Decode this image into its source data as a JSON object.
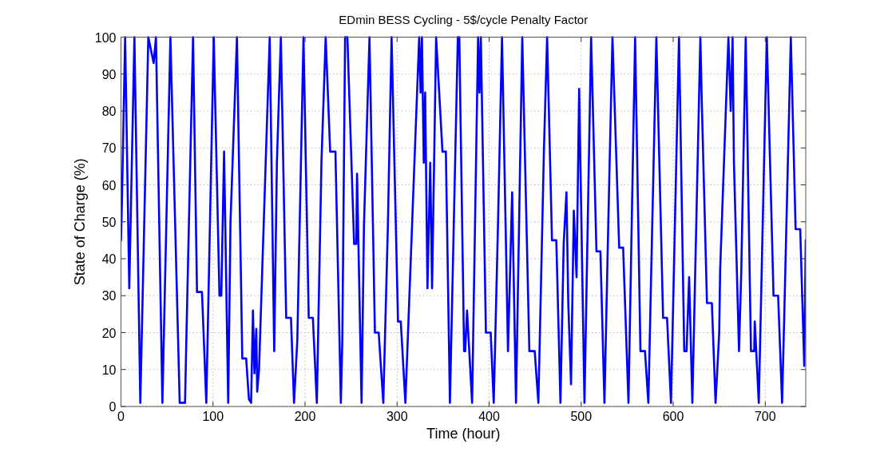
{
  "chart_data": {
    "type": "line",
    "title": "EDmin BESS Cycling - 5$/cycle Penalty Factor",
    "xlabel": "Time (hour)",
    "ylabel": "State of Charge (%)",
    "xlim": [
      0,
      744
    ],
    "ylim": [
      0,
      100
    ],
    "xticks": [
      0,
      100,
      200,
      300,
      400,
      500,
      600,
      700
    ],
    "yticks": [
      0,
      10,
      20,
      30,
      40,
      50,
      60,
      70,
      80,
      90,
      100
    ],
    "grid": true,
    "line_style": "solid",
    "marker": "none",
    "series": [
      {
        "color": "#0000ff",
        "x": [
          0,
          1,
          4.5,
          9,
          14.6,
          21,
          29.7,
          35.5,
          38,
          45,
          53.7,
          63.8,
          69.6,
          71,
          78.3,
          82.6,
          88,
          92.7,
          100.8,
          107,
          109,
          112,
          116.5,
          119,
          126,
          131.8,
          136,
          139,
          141.4,
          143.4,
          145,
          147,
          148,
          150,
          161.6,
          166.5,
          169.4,
          173.7,
          179.5,
          184.7,
          188,
          191.6,
          198.3,
          204,
          208.5,
          212.8,
          217.8,
          222.4,
          227.3,
          233,
          238.9,
          240.5,
          243.5,
          246,
          253.3,
          255.6,
          256.5,
          261.4,
          264,
          270,
          275.9,
          280,
          285,
          290,
          294,
          301,
          304,
          309,
          316.4,
          324,
          325.5,
          327,
          329,
          330.5,
          333,
          336,
          338,
          342.4,
          349.3,
          353,
          357.4,
          366,
          367.6,
          372.8,
          374,
          376,
          381.5,
          388,
          389.5,
          391,
          396.5,
          401.7,
          405,
          409.6,
          414,
          420.5,
          425,
          429.2,
          436,
          443.7,
          449.5,
          453.5,
          459.6,
          463,
          468.3,
          473,
          477.5,
          481,
          484,
          486,
          489,
          492,
          495,
          497.8,
          503.6,
          510.8,
          516.6,
          520.9,
          525.3,
          529.5,
          534,
          541.3,
          545.6,
          551.4,
          558.6,
          564.4,
          569.3,
          573,
          581.7,
          589,
          593.3,
          597.6,
          606.3,
          612,
          614.5,
          617.3,
          620.8,
          629.5,
          631,
          636.7,
          642,
          646,
          650,
          651,
          660,
          662.5,
          664.5,
          666,
          671.5,
          674,
          678.8,
          684.5,
          688,
          688.6,
          693,
          701.7,
          709,
          714,
          718.3,
          720.5,
          727.8,
          733,
          738,
          742.4,
          744
        ],
        "values": [
          45,
          55,
          100,
          32,
          100,
          1,
          100,
          93,
          100,
          1,
          100,
          1,
          1,
          18,
          100,
          31,
          31,
          1,
          100,
          30,
          30,
          69,
          1,
          50,
          100,
          13,
          13,
          2,
          1,
          26,
          9,
          21,
          4,
          10,
          100,
          15,
          66,
          100,
          24,
          24,
          1,
          18,
          100,
          24,
          24,
          1,
          66,
          100,
          69,
          69,
          1,
          18,
          100,
          100,
          44,
          44,
          63,
          1,
          49,
          100,
          20,
          20,
          1,
          49,
          100,
          23,
          23,
          1,
          50,
          100,
          85,
          100,
          66,
          85,
          32,
          66,
          32,
          100,
          69,
          69,
          1,
          100,
          100,
          15,
          15,
          26,
          1,
          100,
          85,
          100,
          20,
          20,
          1,
          49,
          100,
          15,
          58,
          1,
          100,
          15,
          15,
          1,
          70,
          100,
          45,
          45,
          1,
          44,
          58,
          28,
          6,
          53,
          35,
          86,
          1,
          100,
          42,
          42,
          1,
          50,
          100,
          43,
          43,
          1,
          100,
          15,
          15,
          1,
          100,
          24,
          24,
          1,
          100,
          15,
          15,
          35,
          1,
          100,
          83,
          28,
          28,
          1,
          20,
          37,
          100,
          80,
          100,
          66,
          15,
          37,
          100,
          15,
          15,
          23,
          1,
          100,
          30,
          30,
          1,
          23,
          100,
          48,
          48,
          11,
          45
        ]
      }
    ]
  }
}
